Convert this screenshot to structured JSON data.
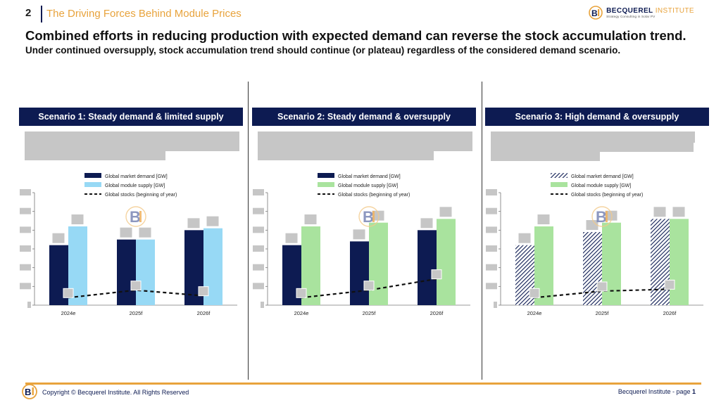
{
  "header": {
    "slide_number": "2",
    "section_title": "The Driving Forces Behind Module Prices",
    "logo_name_bold": "BECQUEREL",
    "logo_name_light": " INSTITUTE",
    "logo_tagline": "Strategy Consulting in Solar PV"
  },
  "headline": "Combined efforts in reducing production with expected demand can reverse the stock accumulation trend.",
  "subheadline": "Under continued oversupply, stock accumulation trend should continue (or plateau) regardless of the considered demand scenario.",
  "scenarios": [
    {
      "title": "Scenario 1: Steady demand & limited supply"
    },
    {
      "title": "Scenario 2: Steady demand & oversupply"
    },
    {
      "title": "Scenario 3: High demand & oversupply"
    }
  ],
  "colors": {
    "navy": "#0d1b52",
    "light_blue": "#97d9f5",
    "light_green": "#a9e39e",
    "orange": "#e8a33c",
    "redaction": "#c6c6c6"
  },
  "chart_data": [
    {
      "type": "bar",
      "title": "Scenario 1: Steady demand & limited supply",
      "categories": [
        "2024e",
        "2025f",
        "2026f"
      ],
      "series": [
        {
          "name": "Global market demand [GW]",
          "kind": "bar",
          "style": "solid",
          "color": "#0d1b52",
          "values": [
            32,
            35,
            40
          ]
        },
        {
          "name": "Global module supply [GW]",
          "kind": "bar",
          "style": "solid",
          "color": "#97d9f5",
          "values": [
            42,
            35,
            41
          ]
        },
        {
          "name": "Global stocks (beginning of year)",
          "kind": "line",
          "style": "dashed",
          "color": "#111111",
          "values": [
            4,
            8,
            5
          ]
        }
      ],
      "ylim": [
        0,
        60
      ],
      "xlabel": "",
      "ylabel": "",
      "legend": "top"
    },
    {
      "type": "bar",
      "title": "Scenario 2: Steady demand & oversupply",
      "categories": [
        "2024e",
        "2025f",
        "2026f"
      ],
      "series": [
        {
          "name": "Global market demand [GW]",
          "kind": "bar",
          "style": "solid",
          "color": "#0d1b52",
          "values": [
            32,
            34,
            40
          ]
        },
        {
          "name": "Global module supply [GW]",
          "kind": "bar",
          "style": "solid",
          "color": "#a9e39e",
          "values": [
            42,
            44,
            46
          ]
        },
        {
          "name": "Global stocks (beginning of year)",
          "kind": "line",
          "style": "dashed",
          "color": "#111111",
          "values": [
            4,
            8,
            14
          ]
        }
      ],
      "ylim": [
        0,
        60
      ],
      "xlabel": "",
      "ylabel": "",
      "legend": "top"
    },
    {
      "type": "bar",
      "title": "Scenario 3: High demand & oversupply",
      "categories": [
        "2024e",
        "2025f",
        "2026f"
      ],
      "series": [
        {
          "name": "Global market demand [GW]",
          "kind": "bar",
          "style": "hatched",
          "color": "#0d1b52",
          "values": [
            32,
            39,
            46
          ]
        },
        {
          "name": "Global module supply [GW]",
          "kind": "bar",
          "style": "solid",
          "color": "#a9e39e",
          "values": [
            42,
            44,
            46
          ]
        },
        {
          "name": "Global stocks (beginning of year)",
          "kind": "line",
          "style": "dashed",
          "color": "#111111",
          "values": [
            4,
            7.5,
            8.5
          ]
        }
      ],
      "ylim": [
        0,
        60
      ],
      "xlabel": "",
      "ylabel": "",
      "legend": "top"
    }
  ],
  "footer": {
    "copyright": "Copyright © Becquerel Institute. All Rights Reserved",
    "page_prefix": "Becquerel Institute - page ",
    "page_number": "1"
  }
}
